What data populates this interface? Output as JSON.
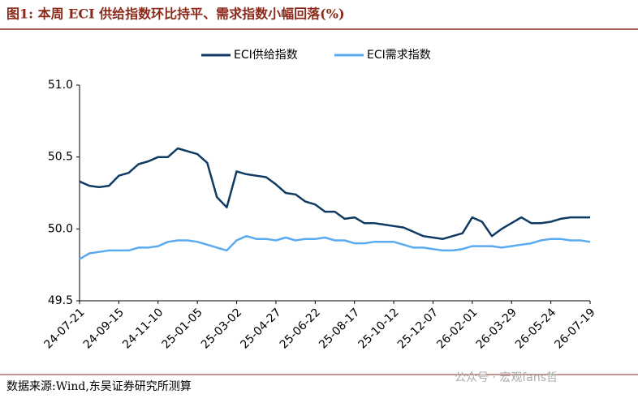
{
  "chart_data": {
    "type": "line",
    "title": "图1: 本周 ECI 供给指数环比持平、需求指数小幅回落(%)",
    "source": "数据来源:Wind,东吴证券研究所测算",
    "watermark": "公众号 · 宏观fans哲",
    "categories": [
      "24-07-21",
      null,
      null,
      null,
      "24-09-15",
      null,
      null,
      null,
      "24-11-10",
      null,
      null,
      null,
      "25-01-05",
      null,
      null,
      null,
      "25-03-02",
      null,
      null,
      null,
      "25-04-27",
      null,
      null,
      null,
      "25-06-22",
      null,
      null,
      null,
      "25-08-17",
      null,
      null,
      null,
      "25-10-12",
      null,
      null,
      null,
      "25-12-07",
      null,
      null,
      null,
      "26-02-01",
      null,
      null,
      null,
      "26-03-29",
      null,
      null,
      null,
      "26-05-24",
      null,
      null,
      null,
      "26-07-19"
    ],
    "series": [
      {
        "name": "ECI供给指数",
        "color": "#0f3a63",
        "values": [
          50.33,
          50.3,
          50.29,
          50.3,
          50.37,
          50.39,
          50.45,
          50.47,
          50.5,
          50.5,
          50.56,
          50.54,
          50.52,
          50.46,
          50.22,
          50.15,
          50.4,
          50.38,
          50.37,
          50.36,
          50.31,
          50.25,
          50.24,
          50.19,
          50.17,
          50.12,
          50.12,
          50.07,
          50.08,
          50.04,
          50.04,
          50.03,
          50.02,
          50.01,
          49.98,
          49.95,
          49.94,
          49.93,
          49.95,
          49.97,
          50.08,
          50.05,
          49.95,
          50.0,
          50.04,
          50.08,
          50.04,
          50.04,
          50.05,
          50.07,
          50.08,
          50.08,
          50.08
        ]
      },
      {
        "name": "ECI需求指数",
        "color": "#5aaaf0",
        "values": [
          49.79,
          49.83,
          49.84,
          49.85,
          49.85,
          49.85,
          49.87,
          49.87,
          49.88,
          49.91,
          49.92,
          49.92,
          49.91,
          49.89,
          49.87,
          49.85,
          49.92,
          49.95,
          49.93,
          49.93,
          49.92,
          49.94,
          49.92,
          49.93,
          49.93,
          49.94,
          49.92,
          49.92,
          49.9,
          49.9,
          49.91,
          49.91,
          49.91,
          49.89,
          49.87,
          49.87,
          49.86,
          49.85,
          49.85,
          49.86,
          49.88,
          49.88,
          49.88,
          49.87,
          49.88,
          49.89,
          49.9,
          49.92,
          49.93,
          49.93,
          49.92,
          49.92,
          49.91
        ]
      }
    ],
    "ylim": [
      49.5,
      51.0
    ],
    "yticks": [
      {
        "value": 49.5,
        "label": "49.5"
      },
      {
        "value": 50.0,
        "label": "50.0"
      },
      50.5,
      {
        "value": 51.0,
        "label": "51.0"
      }
    ],
    "legend": "top"
  }
}
